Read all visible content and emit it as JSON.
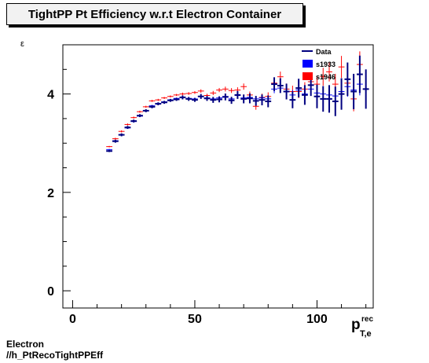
{
  "title": "TightPP Pt Efficiency w.r.t Electron Container",
  "footer": {
    "line1": "Electron",
    "line2": "//h_PtRecoTightPPEff"
  },
  "colors": {
    "data": "#000080",
    "s1933": "#0000ff",
    "s1946": "#ff0000"
  },
  "chart_data": {
    "type": "scatter",
    "title": "TightPP Pt Efficiency w.r.t Electron Container",
    "xlabel": {
      "main": "p",
      "sup": "rec",
      "sub": "T,e"
    },
    "ylabel": "ε",
    "xlim": [
      -4,
      123
    ],
    "ylim": [
      -0.35,
      5.0
    ],
    "x_ticks": [
      0,
      50,
      100
    ],
    "y_ticks": [
      0,
      2,
      4
    ],
    "grid": false,
    "legend_placement": "top-right",
    "legend": [
      "Data",
      "s1933",
      "s1946"
    ],
    "x": [
      15,
      17.5,
      20,
      22.5,
      25,
      27.5,
      30,
      32.5,
      35,
      37.5,
      40,
      42.5,
      45,
      47.5,
      50,
      52.5,
      55,
      57.5,
      60,
      62.5,
      65,
      67.5,
      70,
      72.5,
      75,
      77.5,
      80,
      82.5,
      85,
      87.5,
      90,
      92.5,
      95,
      97.5,
      100,
      102.5,
      105,
      107.5,
      110,
      112.5,
      115,
      117.5,
      120
    ],
    "series": [
      {
        "name": "Data",
        "values": [
          2.84,
          3.04,
          3.17,
          3.32,
          3.45,
          3.56,
          3.66,
          3.74,
          3.8,
          3.83,
          3.87,
          3.89,
          3.93,
          3.9,
          3.88,
          3.95,
          3.91,
          3.88,
          3.89,
          3.94,
          3.87,
          3.98,
          3.9,
          3.91,
          3.86,
          3.88,
          3.85,
          4.2,
          4.17,
          4.05,
          3.88,
          4.12,
          3.98,
          4.18,
          3.95,
          3.9,
          3.9,
          3.85,
          4.0,
          4.3,
          4.05,
          4.4,
          4.1
        ],
        "errors": [
          0.02,
          0.03,
          0.03,
          0.03,
          0.03,
          0.03,
          0.03,
          0.03,
          0.03,
          0.03,
          0.03,
          0.03,
          0.04,
          0.04,
          0.04,
          0.05,
          0.05,
          0.06,
          0.06,
          0.07,
          0.07,
          0.08,
          0.09,
          0.1,
          0.1,
          0.11,
          0.12,
          0.14,
          0.15,
          0.16,
          0.17,
          0.19,
          0.2,
          0.22,
          0.24,
          0.26,
          0.28,
          0.3,
          0.32,
          0.34,
          0.36,
          0.38,
          0.4
        ]
      },
      {
        "name": "s1933",
        "values": [
          2.87,
          3.05,
          3.17,
          3.31,
          3.44,
          3.55,
          3.66,
          3.76,
          3.81,
          3.84,
          3.88,
          3.91,
          3.94,
          3.91,
          3.9,
          3.95,
          3.92,
          3.9,
          3.92,
          3.95,
          3.9,
          3.97,
          3.92,
          3.93,
          3.9,
          3.92,
          3.9,
          4.1,
          4.12,
          4.05,
          3.98,
          4.08,
          4.0,
          4.1,
          4.02,
          4.0,
          3.98,
          3.96,
          4.05,
          4.15,
          4.08,
          4.2,
          4.1
        ]
      },
      {
        "name": "s1946",
        "values": [
          2.93,
          3.09,
          3.24,
          3.38,
          3.52,
          3.64,
          3.74,
          3.86,
          3.88,
          3.92,
          3.95,
          3.98,
          4.0,
          4.01,
          4.03,
          4.06,
          3.97,
          4.02,
          4.08,
          4.1,
          4.07,
          4.08,
          4.15,
          3.98,
          3.75,
          3.93,
          3.95,
          4.22,
          4.35,
          4.1,
          4.05,
          4.05,
          4.1,
          4.25,
          4.2,
          4.35,
          4.45,
          4.2,
          4.55,
          4.22,
          3.9,
          4.6,
          4.1
        ]
      }
    ]
  }
}
